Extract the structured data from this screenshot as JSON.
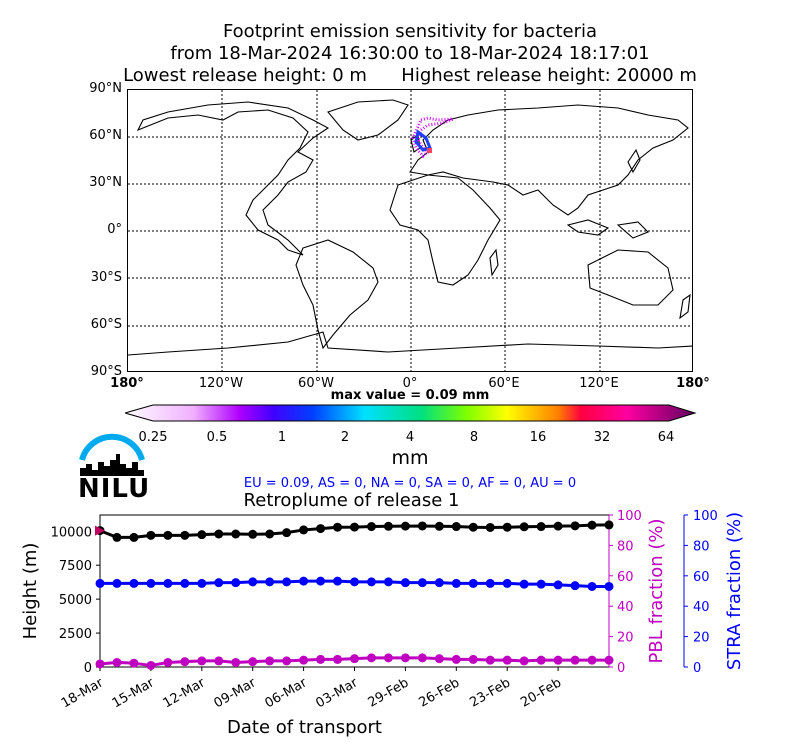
{
  "title": {
    "line1": "Footprint emission sensitivity for bacteria",
    "line2": "from 18-Mar-2024 16:30:00 to 18-Mar-2024 18:17:01",
    "line3": "Lowest release height: 0 m      Highest release height: 20000 m"
  },
  "map": {
    "lat_labels": [
      "90°N",
      "60°N",
      "30°N",
      "0°",
      "30°S",
      "60°S",
      "90°S"
    ],
    "lon_labels": [
      "180°",
      "120°W",
      "60°W",
      "0°",
      "60°E",
      "120°E",
      "180°"
    ],
    "max_value_text": "max value = 0.09 mm"
  },
  "colorbar": {
    "tick_labels": [
      "0.25",
      "0.5",
      "1",
      "2",
      "4",
      "8",
      "16",
      "32",
      "64"
    ],
    "unit": "mm"
  },
  "logo": {
    "text": "NILU"
  },
  "regions_text": "EU = 0.09,  AS = 0,  NA = 0,  SA = 0,  AF = 0,  AU = 0",
  "chart_data": {
    "type": "line",
    "title": "Retroplume of release 1",
    "xlabel": "Date of transport",
    "ylabel": "Height (m)",
    "ylabel_right1": "PBL fraction (%)",
    "ylabel_right2": "STRA fraction (%)",
    "x_tick_labels": [
      "18-Mar",
      "15-Mar",
      "12-Mar",
      "09-Mar",
      "06-Mar",
      "03-Mar",
      "29-Feb",
      "26-Feb",
      "23-Feb",
      "20-Feb"
    ],
    "x_days_back_range": [
      0,
      30
    ],
    "ylim": [
      0,
      11200
    ],
    "y_ticks": [
      0,
      2500,
      5000,
      7500,
      10000
    ],
    "right_ylim": [
      0,
      100
    ],
    "right_ticks": [
      0,
      20,
      40,
      60,
      80,
      100
    ],
    "colors": {
      "height": "#000000",
      "pbl": "#c000c0",
      "stra": "#0000ff",
      "marker": "#c00060"
    },
    "series": [
      {
        "axis": "left",
        "days_back": [
          0,
          1,
          2,
          3,
          4,
          5,
          6,
          7,
          8,
          9,
          10,
          11,
          12,
          13,
          14,
          15,
          16,
          17,
          18,
          19,
          20,
          21,
          22,
          23,
          24,
          25,
          26,
          27,
          28,
          29,
          30
        ],
        "values": [
          10050,
          9550,
          9550,
          9700,
          9700,
          9700,
          9750,
          9800,
          9800,
          9780,
          9800,
          9900,
          10100,
          10200,
          10300,
          10310,
          10350,
          10370,
          10380,
          10390,
          10370,
          10350,
          10300,
          10280,
          10300,
          10330,
          10350,
          10380,
          10400,
          10450,
          10470
        ]
      },
      {
        "axis": "right",
        "days_back": [
          0,
          1,
          2,
          3,
          4,
          5,
          6,
          7,
          8,
          9,
          10,
          11,
          12,
          13,
          14,
          15,
          16,
          17,
          18,
          19,
          20,
          21,
          22,
          23,
          24,
          25,
          26,
          27,
          28,
          29,
          30
        ],
        "values": [
          2,
          3,
          2.5,
          1,
          3,
          3.5,
          4,
          4,
          3,
          3.5,
          4,
          4,
          4.5,
          5,
          5,
          5.5,
          6,
          6,
          6,
          6,
          5.5,
          5,
          5,
          4.5,
          4.5,
          4,
          4.5,
          4.5,
          4.5,
          4.5,
          4.5
        ]
      },
      {
        "axis": "right",
        "days_back": [
          0,
          1,
          2,
          3,
          4,
          5,
          6,
          7,
          8,
          9,
          10,
          11,
          12,
          13,
          14,
          15,
          16,
          17,
          18,
          19,
          20,
          21,
          22,
          23,
          24,
          25,
          26,
          27,
          28,
          29,
          30
        ],
        "values": [
          55,
          55,
          55,
          55,
          55,
          55,
          55,
          55.5,
          55.5,
          56,
          56,
          56,
          56.5,
          56.5,
          56.5,
          56,
          56,
          56,
          55.5,
          55.5,
          55.5,
          55,
          55,
          55,
          55,
          54.5,
          54.5,
          54,
          53.5,
          53,
          53
        ]
      }
    ]
  }
}
